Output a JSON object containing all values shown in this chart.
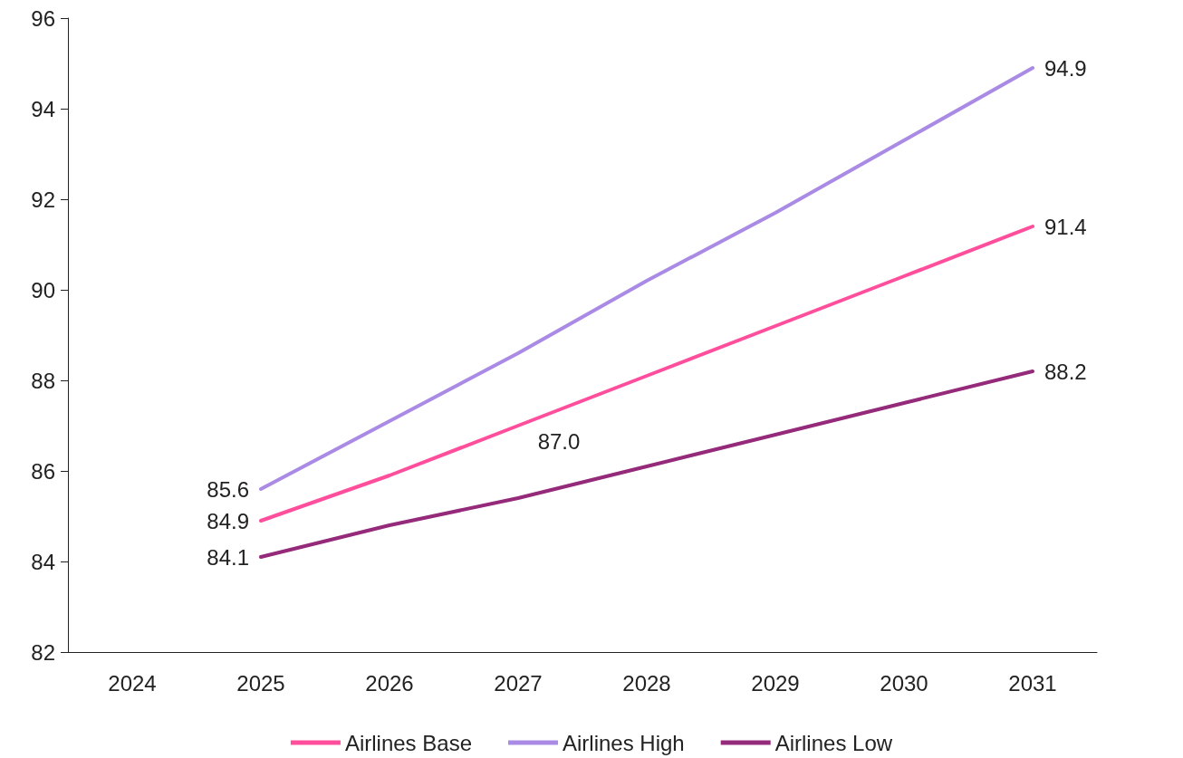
{
  "chart_data": {
    "type": "line",
    "categories": [
      "2024",
      "2025",
      "2026",
      "2027",
      "2028",
      "2029",
      "2030",
      "2031"
    ],
    "series": [
      {
        "name": "Airlines Base",
        "color": "#ff4f9c",
        "values": [
          null,
          84.9,
          85.9,
          87.0,
          88.1,
          89.2,
          90.3,
          91.4
        ],
        "value_labels": [
          null,
          "84.9",
          null,
          "87.0",
          null,
          null,
          null,
          "91.4"
        ]
      },
      {
        "name": "Airlines High",
        "color": "#a98be6",
        "values": [
          null,
          85.6,
          87.1,
          88.6,
          90.2,
          91.7,
          93.3,
          94.9
        ],
        "value_labels": [
          null,
          "85.6",
          null,
          null,
          null,
          null,
          null,
          "94.9"
        ]
      },
      {
        "name": "Airlines Low",
        "color": "#952a7b",
        "values": [
          null,
          84.1,
          84.8,
          85.4,
          86.1,
          86.8,
          87.5,
          88.2
        ],
        "value_labels": [
          null,
          "84.1",
          null,
          null,
          null,
          null,
          null,
          "88.2"
        ]
      }
    ],
    "ylim": [
      82,
      96
    ],
    "yticks": [
      82,
      84,
      86,
      88,
      90,
      92,
      94,
      96
    ],
    "grid": false,
    "legend": "bottom",
    "marker": "none",
    "line_style": "solid"
  }
}
